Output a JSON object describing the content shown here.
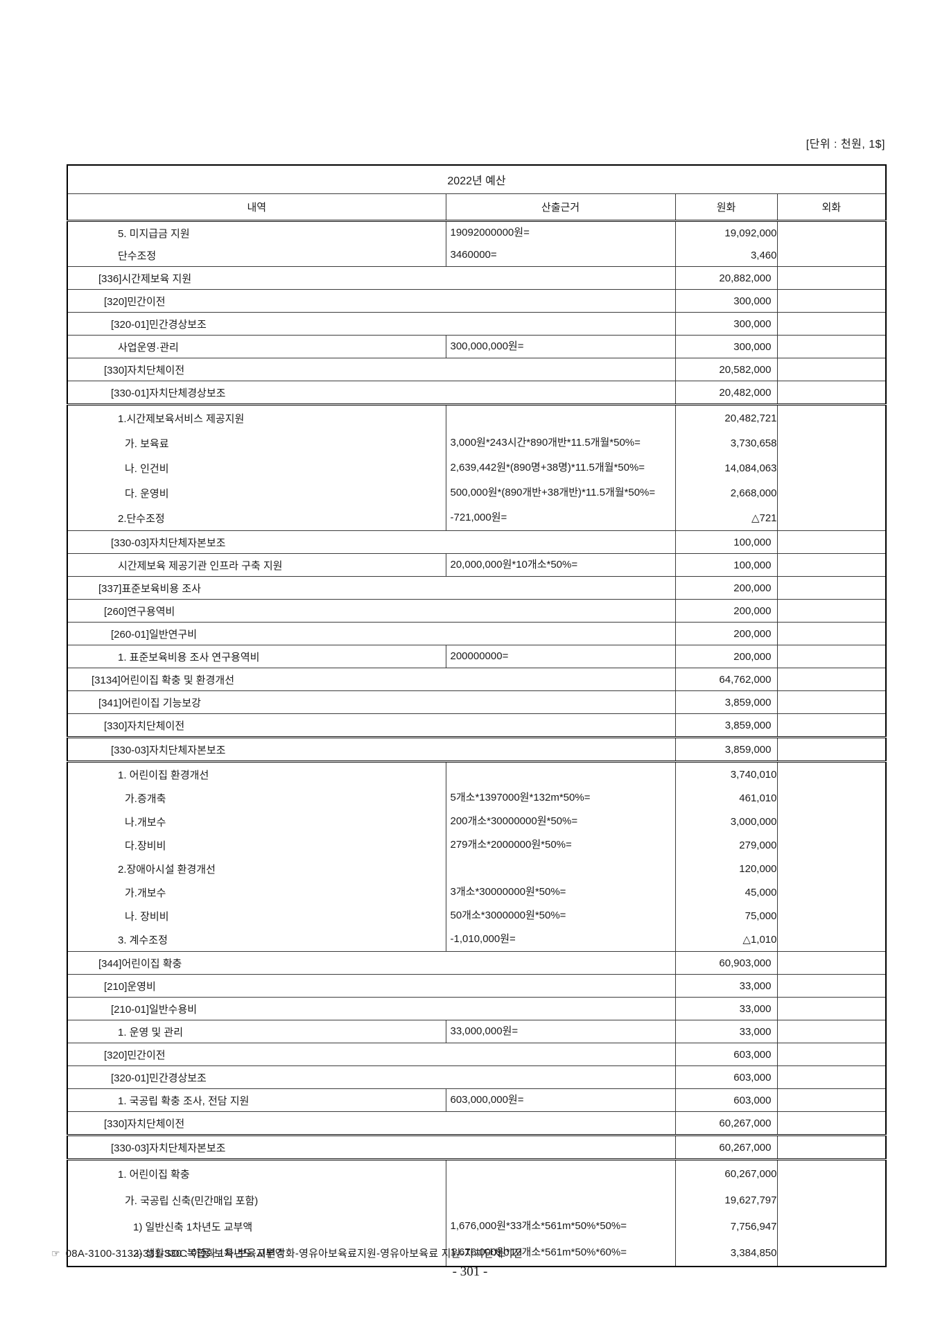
{
  "page": {
    "unit_label": "[단위 : 천원, 1$]",
    "footnote_marker": "☞",
    "footnote": "08A-3100-3133-331-330 : 아동·보육-보육지원강화-영유아보육료지원-영유아보육료 지원-자치단체이전",
    "page_number": "- 301 -"
  },
  "table": {
    "title": "2022년 예산",
    "columns": [
      "내역",
      "산출근거",
      "원화",
      "외화"
    ],
    "rows": [
      {
        "type": "block",
        "lines": [
          {
            "indent": 4,
            "name": "5. 미지급금 지원",
            "calc": "19092000000원=",
            "krw": "19,092,000"
          },
          {
            "indent": 4,
            "name": "단수조정",
            "calc": "3460000=",
            "krw": "3,460"
          }
        ]
      },
      {
        "type": "group",
        "indent": 1,
        "name": "[336]시간제보육 지원",
        "krw": "20,882,000"
      },
      {
        "type": "group",
        "indent": 2,
        "name": "[320]민간이전",
        "krw": "300,000"
      },
      {
        "type": "group",
        "indent": 3,
        "name": "[320-01]민간경상보조",
        "krw": "300,000"
      },
      {
        "type": "calc",
        "indent": 4,
        "name": "사업운영·관리",
        "calc": "300,000,000원=",
        "krw": "300,000"
      },
      {
        "type": "group",
        "indent": 2,
        "name": "[330]자치단체이전",
        "krw": "20,582,000"
      },
      {
        "type": "group",
        "indent": 3,
        "name": "[330-01]자치단체경상보조",
        "krw": "20,482,000"
      },
      {
        "type": "block",
        "thick_top": true,
        "lines": [
          {
            "indent": 4,
            "name": "1.시간제보육서비스 제공지원",
            "calc": "",
            "krw": "20,482,721"
          },
          {
            "indent": 5,
            "name": "가. 보육료",
            "calc": "3,000원*243시간*890개반*11.5개월*50%=",
            "krw": "3,730,658"
          },
          {
            "indent": 5,
            "name": "나. 인건비",
            "calc": "2,639,442원*(890명+38명)*11.5개월*50%=",
            "krw": "14,084,063"
          },
          {
            "indent": 5,
            "name": "다. 운영비",
            "calc": "500,000원*(890개반+38개반)*11.5개월*50%=",
            "krw": "2,668,000"
          },
          {
            "indent": 4,
            "name": "2.단수조정",
            "calc": "-721,000원=",
            "krw": "△721"
          }
        ]
      },
      {
        "type": "group",
        "indent": 3,
        "name": "[330-03]자치단체자본보조",
        "krw": "100,000"
      },
      {
        "type": "calc",
        "indent": 4,
        "name": "시간제보육 제공기관 인프라 구축 지원",
        "calc": "20,000,000원*10개소*50%=",
        "krw": "100,000"
      },
      {
        "type": "group",
        "indent": 1,
        "name": "[337]표준보육비용 조사",
        "krw": "200,000"
      },
      {
        "type": "group",
        "indent": 2,
        "name": "[260]연구용역비",
        "krw": "200,000"
      },
      {
        "type": "group",
        "indent": 3,
        "name": "[260-01]일반연구비",
        "krw": "200,000"
      },
      {
        "type": "calc",
        "indent": 4,
        "name": "1. 표준보육비용 조사 연구용역비",
        "calc": "200000000=",
        "krw": "200,000"
      },
      {
        "type": "group",
        "indent": 0,
        "name": "[3134]어린이집 확충 및 환경개선",
        "krw": "64,762,000"
      },
      {
        "type": "group",
        "indent": 1,
        "name": "[341]어린이집 기능보강",
        "krw": "3,859,000"
      },
      {
        "type": "group",
        "indent": 2,
        "name": "[330]자치단체이전",
        "krw": "3,859,000"
      },
      {
        "type": "group",
        "indent": 3,
        "name": "[330-03]자치단체자본보조",
        "krw": "3,859,000",
        "thick_top": true
      },
      {
        "type": "block",
        "thick_top": true,
        "lines": [
          {
            "indent": 4,
            "name": "1. 어린이집 환경개선",
            "calc": "",
            "krw": "3,740,010"
          },
          {
            "indent": 5,
            "name": "가.증개축",
            "calc": "5개소*1397000원*132m*50%=",
            "krw": "461,010"
          },
          {
            "indent": 5,
            "name": "나.개보수",
            "calc": "200개소*30000000원*50%=",
            "krw": "3,000,000"
          },
          {
            "indent": 5,
            "name": "다.장비비",
            "calc": "279개소*2000000원*50%=",
            "krw": "279,000"
          },
          {
            "indent": 4,
            "name": "2.장애아시설 환경개선",
            "calc": "",
            "krw": "120,000"
          },
          {
            "indent": 5,
            "name": "가.개보수",
            "calc": "3개소*30000000원*50%=",
            "krw": "45,000"
          },
          {
            "indent": 5,
            "name": "나. 장비비",
            "calc": "50개소*3000000원*50%=",
            "krw": "75,000"
          },
          {
            "indent": 4,
            "name": "3. 계수조정",
            "calc": "-1,010,000원=",
            "krw": "△1,010"
          }
        ]
      },
      {
        "type": "group",
        "indent": 1,
        "name": "[344]어린이집 확충",
        "krw": "60,903,000"
      },
      {
        "type": "group",
        "indent": 2,
        "name": "[210]운영비",
        "krw": "33,000"
      },
      {
        "type": "group",
        "indent": 3,
        "name": "[210-01]일반수용비",
        "krw": "33,000"
      },
      {
        "type": "calc",
        "indent": 4,
        "name": "1. 운영 및 관리",
        "calc": "33,000,000원=",
        "krw": "33,000"
      },
      {
        "type": "group",
        "indent": 2,
        "name": "[320]민간이전",
        "krw": "603,000"
      },
      {
        "type": "group",
        "indent": 3,
        "name": "[320-01]민간경상보조",
        "krw": "603,000"
      },
      {
        "type": "calc",
        "indent": 4,
        "name": "1. 국공립 확충 조사, 전담 지원",
        "calc": "603,000,000원=",
        "krw": "603,000"
      },
      {
        "type": "group",
        "indent": 2,
        "name": "[330]자치단체이전",
        "krw": "60,267,000"
      },
      {
        "type": "group",
        "indent": 3,
        "name": "[330-03]자치단체자본보조",
        "krw": "60,267,000",
        "thick_top": true
      },
      {
        "type": "block",
        "thick_top": true,
        "lines": [
          {
            "indent": 4,
            "name": "1. 어린이집 확충",
            "calc": "",
            "krw": "60,267,000"
          },
          {
            "indent": 5,
            "name": "가. 국공립 신축(민간매입 포함)",
            "calc": "",
            "krw": "19,627,797"
          },
          {
            "indent": 6,
            "name": "1) 일반신축 1차년도 교부액",
            "calc": "1,676,000원*33개소*561m*50%*50%=",
            "krw": "7,756,947"
          },
          {
            "indent": 6,
            "name": "2) 생활SOC복합화 1차년도 교부액",
            "calc": "1,676,000원*12개소*561m*50%*60%=",
            "krw": "3,384,850"
          }
        ]
      }
    ]
  }
}
